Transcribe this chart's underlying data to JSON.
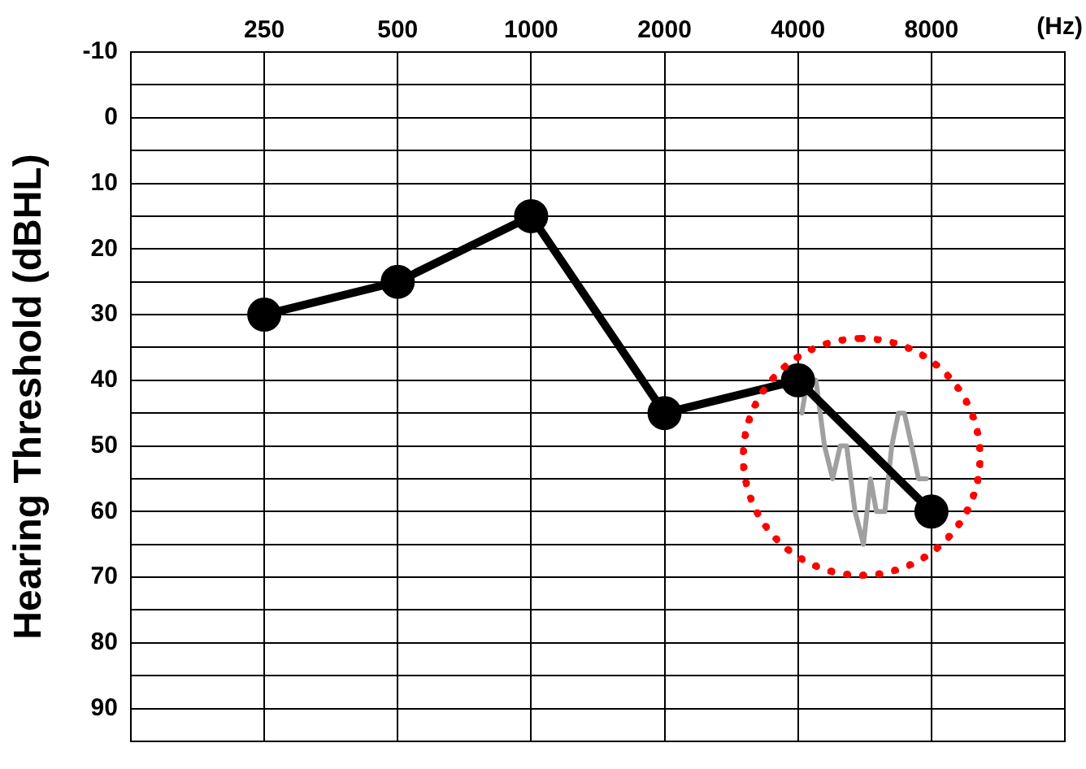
{
  "chart_data": {
    "type": "line",
    "xlabel": "(Hz)",
    "ylabel": "Hearing Threshold (dBHL)",
    "log": "x",
    "xlim": [
      125,
      16000
    ],
    "xticks": [
      250,
      500,
      1000,
      2000,
      4000,
      8000
    ],
    "ylim": [
      95,
      -10
    ],
    "yticks": [
      -10,
      {
        "value": -5,
        "label": null
      },
      0,
      {
        "value": 5,
        "label": null
      },
      10,
      {
        "value": 15,
        "label": null
      },
      20,
      {
        "value": 25,
        "label": null
      },
      30,
      {
        "value": 35,
        "label": null
      },
      40,
      {
        "value": 45,
        "label": null
      },
      50,
      {
        "value": 55,
        "label": null
      },
      60,
      {
        "value": 65,
        "label": null
      },
      70,
      {
        "value": 75,
        "label": null
      },
      80,
      {
        "value": 85,
        "label": null
      },
      90
    ],
    "grid": true,
    "legend": false,
    "series": [
      {
        "color": "#a0a0a0",
        "marker": "none",
        "x": [
          4080,
          4200,
          4390,
          4590,
          4790,
          4980,
          5150,
          5380,
          5620,
          5830,
          6010,
          6280,
          6510,
          6740,
          6950,
          7220,
          7480,
          7790
        ],
        "values": [
          45,
          40,
          40,
          50,
          55,
          50,
          50,
          60,
          65,
          55,
          60,
          60,
          50,
          45,
          45,
          50,
          55,
          55
        ]
      },
      {
        "color": "#000000",
        "marker": "circle",
        "x": [
          250,
          500,
          1000,
          2000,
          4000,
          8000
        ],
        "values": [
          30,
          25,
          15,
          45,
          40,
          60
        ]
      }
    ]
  }
}
